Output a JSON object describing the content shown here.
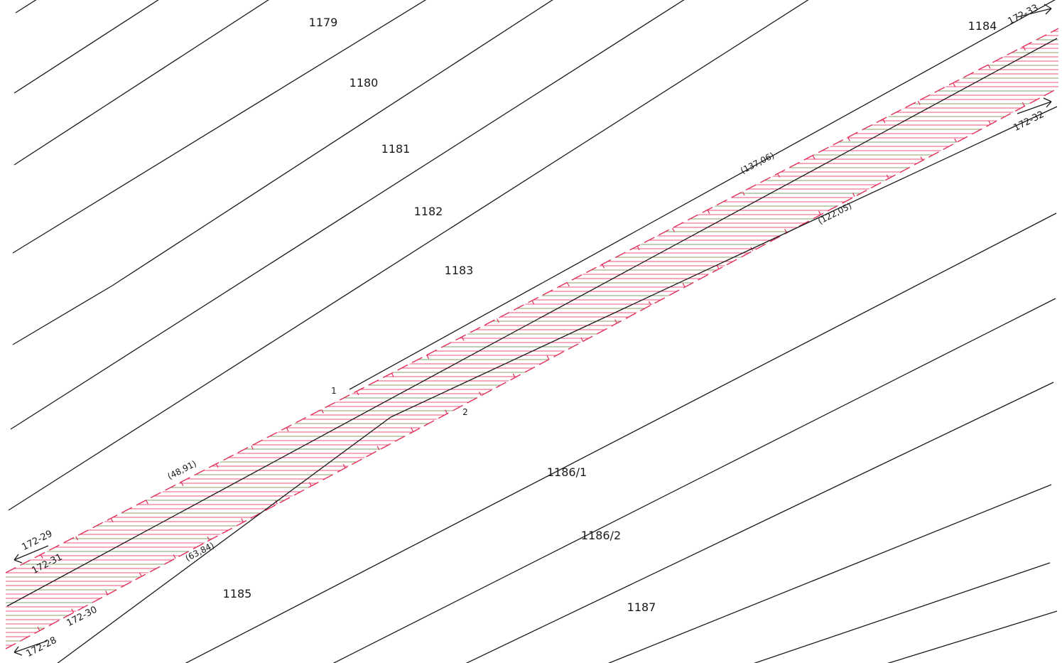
{
  "colors": {
    "boundary": "#1a1a1a",
    "corridor_edge": "#e0305a",
    "hatch_primary": "#e85a7a",
    "hatch_secondary": "#8aa06a"
  },
  "parcels": [
    {
      "id": "1179",
      "label": "1179"
    },
    {
      "id": "1180",
      "label": "1180"
    },
    {
      "id": "1181",
      "label": "1181"
    },
    {
      "id": "1182",
      "label": "1182"
    },
    {
      "id": "1183",
      "label": "1183"
    },
    {
      "id": "1184",
      "label": "1184"
    },
    {
      "id": "1185",
      "label": "1185"
    },
    {
      "id": "1186-1",
      "label": "1186/1"
    },
    {
      "id": "1186-2",
      "label": "1186/2"
    },
    {
      "id": "1187",
      "label": "1187"
    }
  ],
  "measurements": [
    {
      "id": "m1",
      "label": "(137,06)"
    },
    {
      "id": "m2",
      "label": "(122,05)"
    },
    {
      "id": "m3",
      "label": "(48,91)"
    },
    {
      "id": "m4",
      "label": "(63,84)"
    }
  ],
  "sheet_refs": [
    {
      "id": "r33",
      "label": "172-33"
    },
    {
      "id": "r32",
      "label": "172-32"
    },
    {
      "id": "r29",
      "label": "172-29"
    },
    {
      "id": "r31",
      "label": "172-31"
    },
    {
      "id": "r30",
      "label": "172-30"
    },
    {
      "id": "r28",
      "label": "172-28"
    }
  ],
  "points": [
    {
      "id": "p1",
      "label": "1"
    },
    {
      "id": "p2",
      "label": "2"
    }
  ]
}
